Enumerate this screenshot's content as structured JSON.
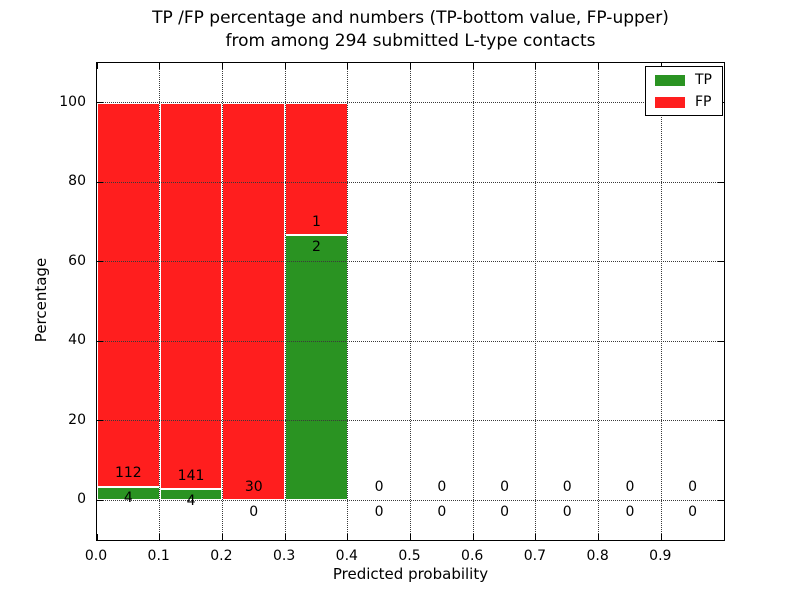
{
  "title_lines": [
    "TP /FP percentage and numbers (TP-bottom value, FP-upper)",
    "from among 294 submitted L-type contacts"
  ],
  "total_submitted_contacts": "294",
  "chart_data": {
    "type": "bar",
    "stacked": true,
    "title": "TP /FP percentage and numbers (TP-bottom value, FP-upper) from among 294 submitted L-type contacts",
    "xlabel": "Predicted probability",
    "ylabel": "Percentage",
    "xlim": [
      0.0,
      1.0
    ],
    "ylim": [
      -10,
      110
    ],
    "xticks": [
      "0.0",
      "0.1",
      "0.2",
      "0.3",
      "0.4",
      "0.5",
      "0.6",
      "0.7",
      "0.8",
      "0.9"
    ],
    "xtick_values": [
      0.0,
      0.1,
      0.2,
      0.3,
      0.4,
      0.5,
      0.6,
      0.7,
      0.8,
      0.9
    ],
    "yticks": [
      0,
      20,
      40,
      60,
      80,
      100
    ],
    "grid": "dotted both axes",
    "bin_width": 0.1,
    "bins": [
      {
        "range": [
          0.0,
          0.1
        ],
        "tp": 4,
        "fp": 112
      },
      {
        "range": [
          0.1,
          0.2
        ],
        "tp": 4,
        "fp": 141
      },
      {
        "range": [
          0.2,
          0.3
        ],
        "tp": 0,
        "fp": 30
      },
      {
        "range": [
          0.3,
          0.4
        ],
        "tp": 2,
        "fp": 1
      },
      {
        "range": [
          0.4,
          0.5
        ],
        "tp": 0,
        "fp": 0
      },
      {
        "range": [
          0.5,
          0.6
        ],
        "tp": 0,
        "fp": 0
      },
      {
        "range": [
          0.6,
          0.7
        ],
        "tp": 0,
        "fp": 0
      },
      {
        "range": [
          0.7,
          0.8
        ],
        "tp": 0,
        "fp": 0
      },
      {
        "range": [
          0.8,
          0.9
        ],
        "tp": 0,
        "fp": 0
      },
      {
        "range": [
          0.9,
          1.0
        ],
        "tp": 0,
        "fp": 0
      }
    ],
    "series": [
      {
        "name": "TP",
        "color": "#2a9322"
      },
      {
        "name": "FP",
        "color": "#ff1e1e"
      }
    ],
    "legend": {
      "position": "upper right",
      "entries": [
        "TP",
        "FP"
      ]
    },
    "colors": {
      "tp_bar": "#2a9322",
      "fp_bar": "#ff1e1e",
      "bar_edge": "#ffffff",
      "grid": "#3a3a3a",
      "text": "#000000",
      "background": "#ffffff"
    }
  }
}
